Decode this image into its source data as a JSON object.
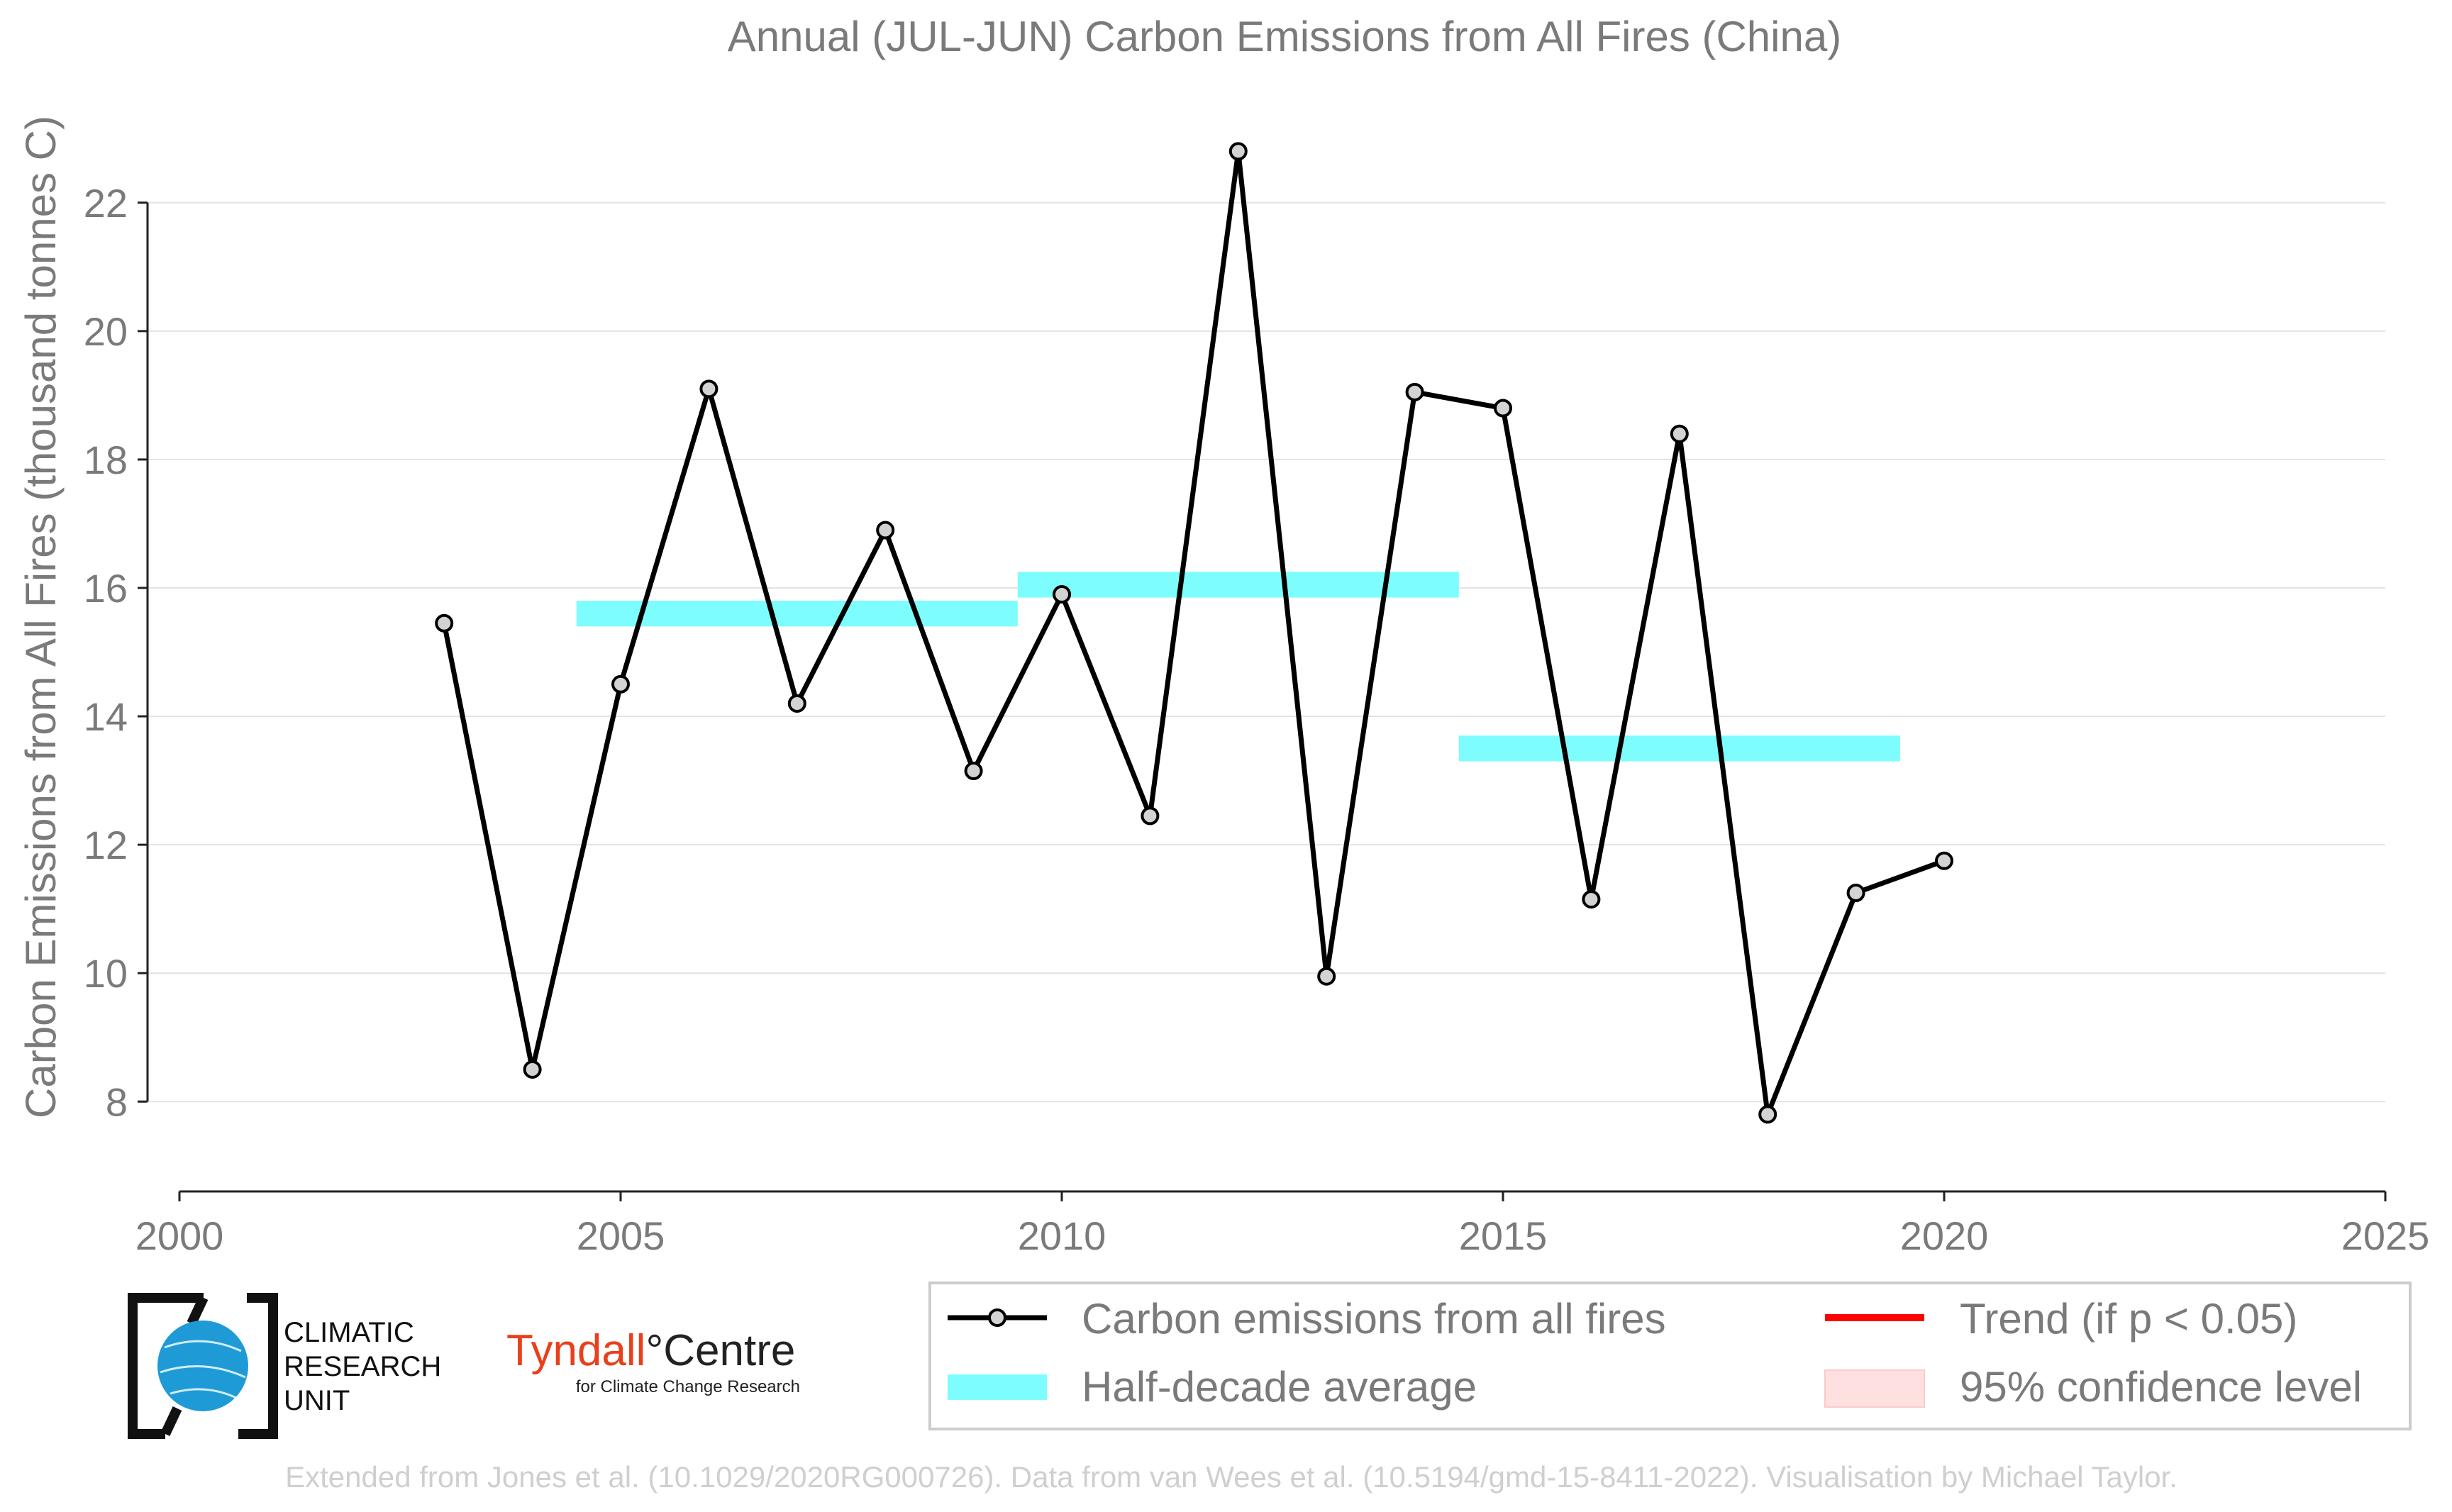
{
  "chart_data": {
    "type": "line",
    "title": "Annual (JUL-JUN) Carbon Emissions from All Fires (China)",
    "xlabel": "",
    "ylabel": "Carbon Emissions from All Fires (thousand tonnes C)",
    "xlim": [
      2000,
      2025
    ],
    "ylim": [
      6.6,
      23.5
    ],
    "x_ticks": [
      2000,
      2005,
      2010,
      2015,
      2020,
      2025
    ],
    "y_ticks": [
      8,
      10,
      12,
      14,
      16,
      18,
      20,
      22
    ],
    "grid": "horizontal",
    "series": [
      {
        "name": "Carbon emissions from all fires",
        "color": "#000000",
        "marker_fill": "#d3d3d3",
        "x": [
          2003,
          2004,
          2005,
          2006,
          2007,
          2008,
          2009,
          2010,
          2011,
          2012,
          2013,
          2014,
          2015,
          2016,
          2017,
          2018,
          2019,
          2020
        ],
        "y": [
          15.45,
          8.5,
          14.5,
          19.1,
          14.2,
          16.9,
          13.15,
          15.9,
          12.45,
          22.8,
          9.95,
          19.05,
          18.8,
          11.15,
          18.4,
          7.8,
          11.25,
          11.75
        ]
      }
    ],
    "half_decade_averages": {
      "name": "Half-decade average",
      "color": "#7dfdfd",
      "segments": [
        {
          "start": 2004.5,
          "end": 2009.5,
          "value": 15.6
        },
        {
          "start": 2009.5,
          "end": 2014.5,
          "value": 16.05
        },
        {
          "start": 2014.5,
          "end": 2019.5,
          "value": 13.5
        }
      ]
    },
    "legend": {
      "placement": "bottom-right",
      "items": [
        {
          "label": "Carbon emissions from all fires",
          "kind": "line-marker",
          "color": "#000000"
        },
        {
          "label": "Trend (if p < 0.05)",
          "kind": "line",
          "color": "#ff0000"
        },
        {
          "label": "Half-decade average",
          "kind": "band",
          "color": "#7dfdfd"
        },
        {
          "label": "95% confidence level",
          "kind": "patch",
          "color": "#ffe0e0"
        }
      ]
    }
  },
  "logos": {
    "cru": {
      "lines": [
        "CLIMATIC",
        "RESEARCH",
        "UNIT"
      ],
      "accent": "#1e9bd7"
    },
    "tyndall": {
      "name_left": "Tyndall",
      "degree": "°",
      "name_right": "Centre",
      "tagline": "for Climate Change Research",
      "accent": "#e8401c"
    }
  },
  "credit": "Extended from Jones et al. (10.1029/2020RG000726). Data from van Wees et al. (10.5194/gmd-15-8411-2022). Visualisation by Michael Taylor.",
  "colors": {
    "text_gray": "#7a7a7a",
    "grid": "#e3e3e3",
    "credit": "#cfcfcf"
  }
}
